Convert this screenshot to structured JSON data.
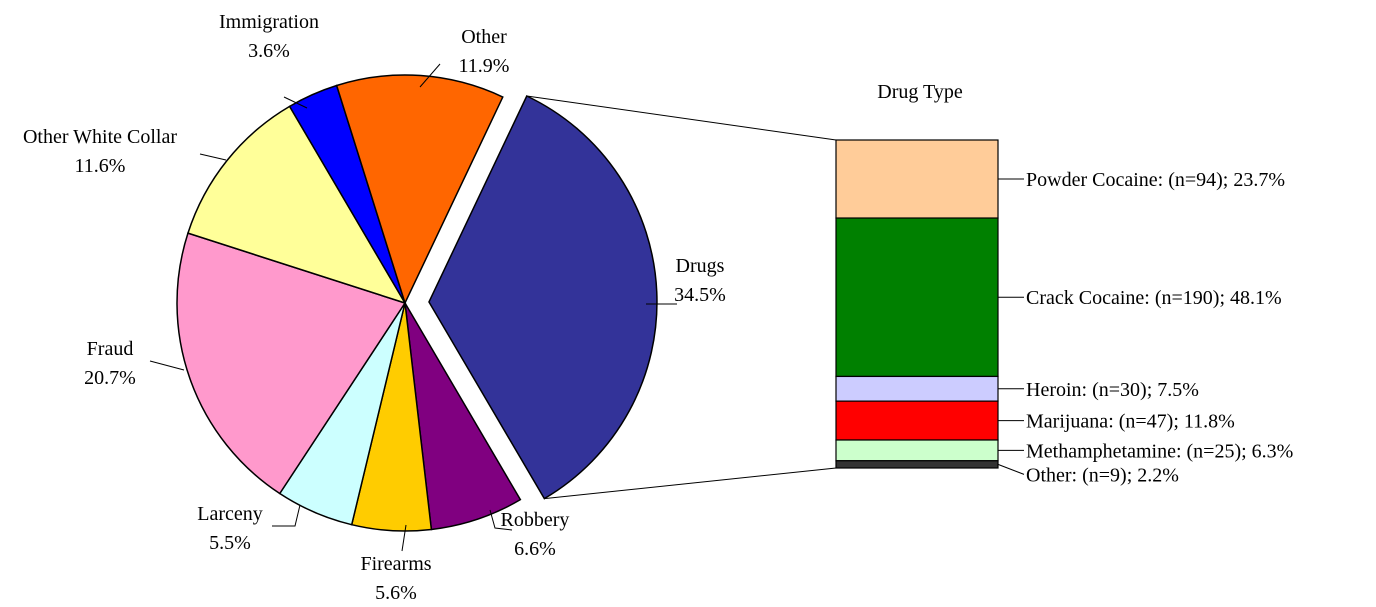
{
  "chart_data": {
    "type": "pie",
    "pie": {
      "slices": [
        {
          "name": "Drugs",
          "value": 34.5,
          "label_pct": "34.5%",
          "color": "#333399",
          "exploded": true
        },
        {
          "name": "Robbery",
          "value": 6.6,
          "label_pct": "6.6%",
          "color": "#800080"
        },
        {
          "name": "Firearms",
          "value": 5.6,
          "label_pct": "5.6%",
          "color": "#ffcc00"
        },
        {
          "name": "Larceny",
          "value": 5.5,
          "label_pct": "5.5%",
          "color": "#ccffff"
        },
        {
          "name": "Fraud",
          "value": 20.7,
          "label_pct": "20.7%",
          "color": "#ff99cc"
        },
        {
          "name": "Other White Collar",
          "value": 11.6,
          "label_pct": "11.6%",
          "color": "#ffff99"
        },
        {
          "name": "Immigration",
          "value": 3.6,
          "label_pct": "3.6%",
          "color": "#0000ff"
        },
        {
          "name": "Other",
          "value": 11.9,
          "label_pct": "11.9%",
          "color": "#ff6600"
        }
      ]
    },
    "breakdown": {
      "type": "stacked-bar",
      "title": "Drug Type",
      "segments": [
        {
          "label": "Powder Cocaine: (n=94); 23.7%",
          "n": 94,
          "value": 23.7,
          "color": "#ffcc99"
        },
        {
          "label": "Crack Cocaine: (n=190); 48.1%",
          "n": 190,
          "value": 48.1,
          "color": "#008000"
        },
        {
          "label": "Heroin: (n=30); 7.5%",
          "n": 30,
          "value": 7.5,
          "color": "#ccccff"
        },
        {
          "label": "Marijuana: (n=47); 11.8%",
          "n": 47,
          "value": 11.8,
          "color": "#ff0000"
        },
        {
          "label": "Methamphetamine: (n=25); 6.3%",
          "n": 25,
          "value": 6.3,
          "color": "#ccffcc"
        },
        {
          "label": "Other: (n=9); 2.2%",
          "n": 9,
          "value": 2.2,
          "color": "#333333"
        }
      ]
    }
  }
}
